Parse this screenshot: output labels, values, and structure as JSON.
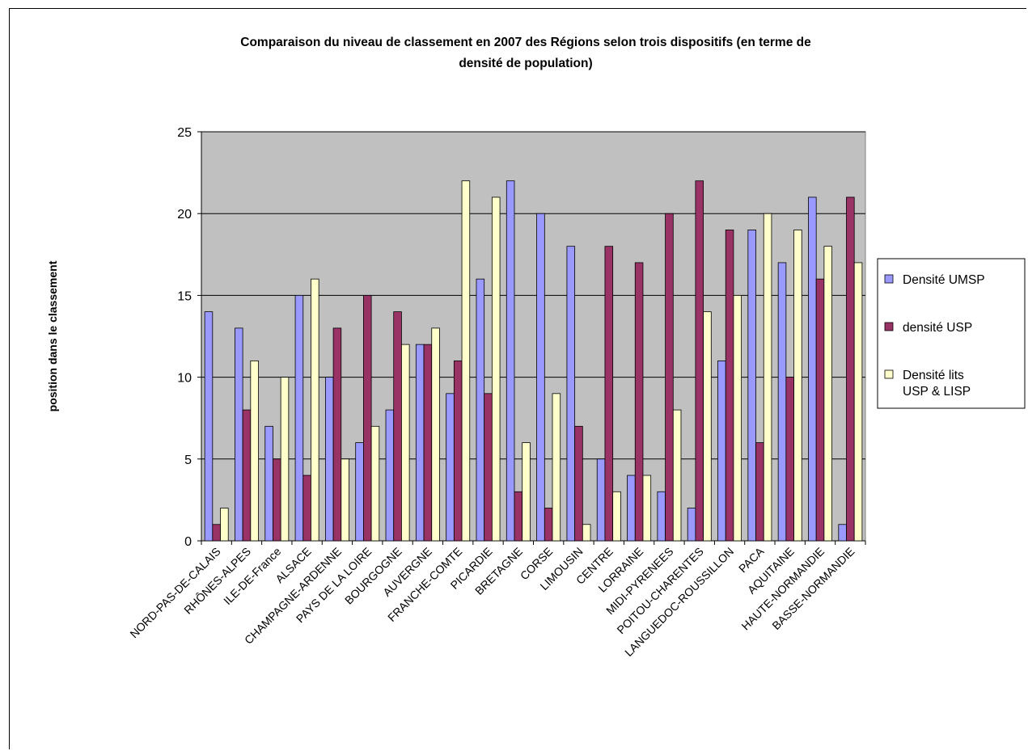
{
  "chart_data": {
    "type": "bar",
    "title_lines": [
      "Comparaison du niveau de classement en 2007 des Régions selon trois dispositifs (en terme de",
      "densité de population)"
    ],
    "xlabel": "",
    "ylabel": "position dans le classement",
    "ylim": [
      0,
      25
    ],
    "yticks": [
      0,
      5,
      10,
      15,
      20,
      25
    ],
    "grid": true,
    "legend_position": "right",
    "categories": [
      "NORD-PAS-DE-CALAIS",
      "RHÔNES-ALPES",
      "ILE-DE-France",
      "ALSACE",
      "CHAMPAGNE-ARDENNE",
      "PAYS DE LA LOIRE",
      "BOURGOGNE",
      "AUVERGNE",
      "FRANCHE-COMTE",
      "PICARDIE",
      "BRETAGNE",
      "CORSE",
      "LIMOUSIN",
      "CENTRE",
      "LORRAINE",
      "MIDI-PYRENEES",
      "POITOU-CHARENTES",
      "LANGUEDOC-ROUSSILLON",
      "PACA",
      "AQUITAINE",
      "HAUTE-NORMANDIE",
      "BASSE-NORMANDIE"
    ],
    "series": [
      {
        "name": "Densité UMSP",
        "color": "#9999ff",
        "values": [
          14,
          13,
          7,
          15,
          10,
          6,
          8,
          12,
          9,
          16,
          22,
          20,
          18,
          5,
          4,
          3,
          2,
          11,
          19,
          17,
          21,
          1
        ]
      },
      {
        "name": "densité USP",
        "color": "#993366",
        "values": [
          1,
          8,
          5,
          4,
          13,
          15,
          14,
          12,
          11,
          9,
          3,
          2,
          7,
          18,
          17,
          20,
          22,
          19,
          6,
          10,
          16,
          21
        ]
      },
      {
        "name_lines": [
          "Densité lits",
          "USP & LISP"
        ],
        "color": "#ffffcc",
        "values": [
          2,
          11,
          10,
          16,
          5,
          7,
          12,
          13,
          22,
          21,
          6,
          9,
          1,
          3,
          4,
          8,
          14,
          15,
          20,
          19,
          18,
          17
        ]
      }
    ],
    "plot_background": "#c0c0c0"
  }
}
